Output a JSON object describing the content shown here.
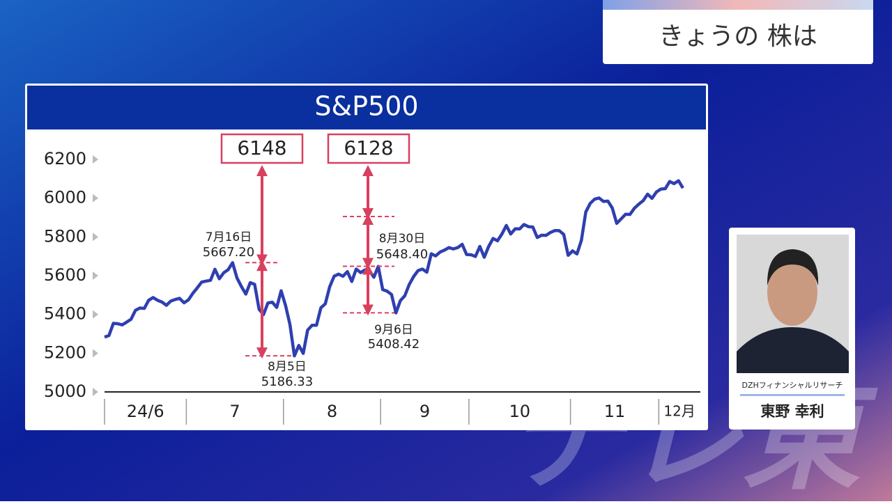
{
  "banner": {
    "title": "きょうの 株は"
  },
  "chart_data": {
    "type": "line",
    "title": "S&P500",
    "categories": [
      "24/6",
      null,
      null,
      null,
      null,
      null,
      null,
      null,
      null,
      null,
      null,
      null,
      null,
      null,
      null,
      null,
      null,
      null,
      null,
      "7",
      null,
      null,
      null,
      null,
      null,
      null,
      null,
      null,
      null,
      null,
      null,
      null,
      null,
      null,
      null,
      null,
      null,
      null,
      null,
      null,
      null,
      "8",
      null,
      null,
      null,
      null,
      null,
      null,
      null,
      null,
      null,
      null,
      null,
      null,
      null,
      null,
      null,
      null,
      null,
      null,
      null,
      null,
      null,
      "9",
      null,
      null,
      null,
      null,
      null,
      null,
      null,
      null,
      null,
      null,
      null,
      null,
      null,
      null,
      null,
      null,
      null,
      null,
      null,
      "10",
      null,
      null,
      null,
      null,
      null,
      null,
      null,
      null,
      null,
      null,
      null,
      null,
      null,
      null,
      null,
      null,
      null,
      null,
      null,
      null,
      null,
      null,
      "11",
      null,
      null,
      null,
      null,
      null,
      null,
      null,
      null,
      null,
      null,
      null,
      null,
      null,
      null,
      null,
      null,
      null,
      null,
      null,
      "12月",
      null,
      null,
      null,
      null,
      null
    ],
    "series": [
      {
        "name": "S&P500",
        "color": "#2f3fb0",
        "values": [
          5283,
          5291,
          5354,
          5352,
          5346,
          5360,
          5375,
          5421,
          5433,
          5431,
          5473,
          5487,
          5473,
          5464,
          5447,
          5469,
          5477,
          5483,
          5460,
          5475,
          5509,
          5537,
          5567,
          5572,
          5576,
          5633,
          5584,
          5615,
          5631,
          5667,
          5588,
          5544,
          5505,
          5564,
          5555,
          5427,
          5399,
          5459,
          5463,
          5436,
          5522,
          5446,
          5347,
          5186,
          5240,
          5199,
          5319,
          5344,
          5344,
          5434,
          5455,
          5543,
          5597,
          5608,
          5597,
          5621,
          5570,
          5634,
          5616,
          5630,
          5626,
          5592,
          5648,
          5528,
          5520,
          5503,
          5408,
          5471,
          5496,
          5554,
          5595,
          5626,
          5634,
          5618,
          5713,
          5702,
          5722,
          5732,
          5745,
          5738,
          5745,
          5762,
          5709,
          5708,
          5699,
          5751,
          5695,
          5751,
          5792,
          5780,
          5815,
          5859,
          5815,
          5842,
          5841,
          5864,
          5853,
          5851,
          5797,
          5809,
          5808,
          5823,
          5833,
          5832,
          5813,
          5705,
          5728,
          5712,
          5782,
          5929,
          5973,
          5995,
          6001,
          5983,
          5985,
          5949,
          5870,
          5893,
          5917,
          5916,
          5948,
          5969,
          5987,
          6021,
          5999,
          6032,
          6047,
          6049,
          6086,
          6075,
          6090,
          6052
        ]
      }
    ],
    "ylim": [
      5000,
      6200
    ],
    "yticks": [
      5000,
      5200,
      5400,
      5600,
      5800,
      6000,
      6200
    ],
    "annotations": [
      {
        "date": "7月16日",
        "value": 5667.2,
        "value_label": "5667.20"
      },
      {
        "date": "8月5日",
        "value": 5186.33,
        "value_label": "5186.33"
      },
      {
        "date": "8月30日",
        "value": 5648.4,
        "value_label": "5648.40"
      },
      {
        "date": "9月6日",
        "value": 5408.42,
        "value_label": "5408.42"
      }
    ],
    "targets": [
      6148,
      6128
    ]
  },
  "presenter": {
    "company": "DZHフィナンシャルリサーチ",
    "name": "東野 幸利"
  }
}
